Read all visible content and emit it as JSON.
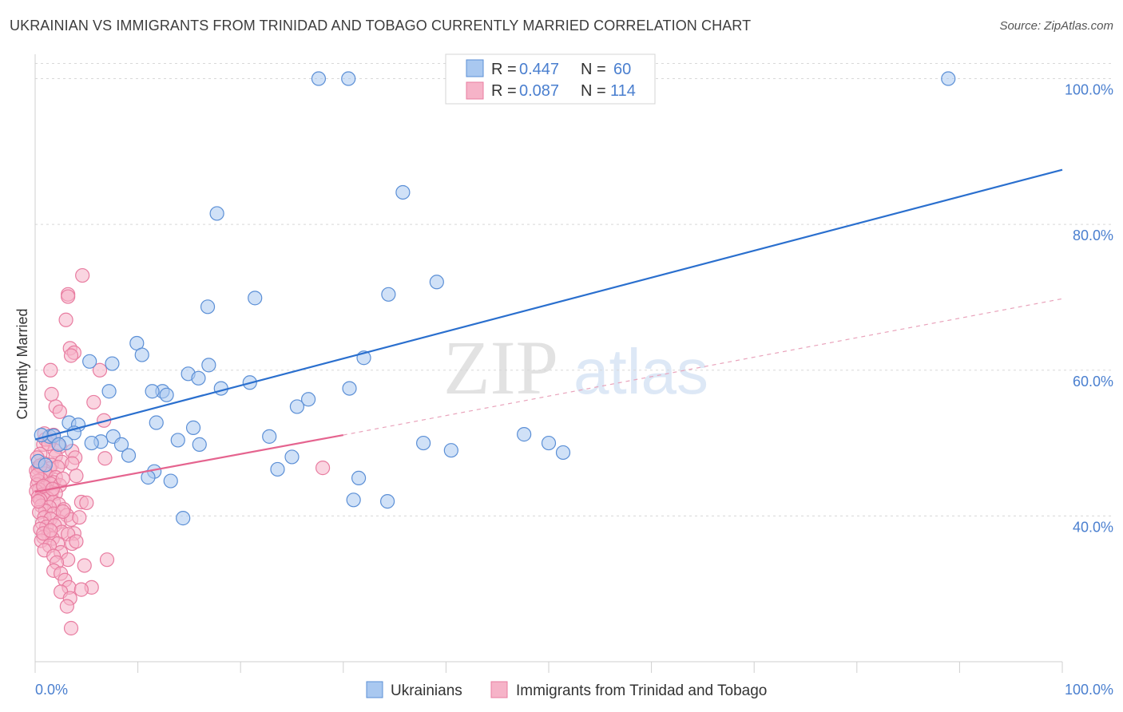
{
  "title": "UKRAINIAN VS IMMIGRANTS FROM TRINIDAD AND TOBAGO CURRENTLY MARRIED CORRELATION CHART",
  "source": "Source: ZipAtlas.com",
  "watermark": {
    "zip": "ZIP",
    "atlas": "atlas"
  },
  "colors": {
    "blue_fill": "#a9c8f0",
    "blue_stroke": "#5b8fd6",
    "blue_line": "#2a6fce",
    "pink_fill": "#f6b3c8",
    "pink_stroke": "#e87ca0",
    "pink_line": "#e5648f",
    "axis_text": "#4a7fcf",
    "grid": "#d8d8d8"
  },
  "chart_data": {
    "type": "scatter",
    "title": "UKRAINIAN VS IMMIGRANTS FROM TRINIDAD AND TOBAGO CURRENTLY MARRIED CORRELATION CHART",
    "xlabel": "",
    "ylabel": "Currently Married",
    "xlim": [
      0,
      100
    ],
    "ylim": [
      20,
      104
    ],
    "x_tick_labels": [
      "0.0%",
      "100.0%"
    ],
    "y_ticks": [
      40,
      60,
      80,
      100
    ],
    "y_tick_labels": [
      "40.0%",
      "60.0%",
      "80.0%",
      "100.0%"
    ],
    "legend": {
      "r_label": "R =",
      "n_label": "N =",
      "entries": [
        {
          "r": "0.447",
          "n": "60"
        },
        {
          "r": "0.087",
          "n": "114"
        }
      ]
    },
    "series": [
      {
        "name": "Ukrainians",
        "color": "#a9c8f0",
        "trend": {
          "x": [
            0,
            100
          ],
          "y": [
            50.5,
            87.5
          ]
        },
        "points": [
          [
            27.6,
            100
          ],
          [
            30.5,
            100
          ],
          [
            88.9,
            100
          ],
          [
            35.8,
            84.4
          ],
          [
            17.7,
            81.5
          ],
          [
            39.1,
            72.1
          ],
          [
            34.4,
            70.4
          ],
          [
            21.4,
            69.9
          ],
          [
            16.8,
            68.7
          ],
          [
            9.9,
            63.7
          ],
          [
            10.4,
            62.1
          ],
          [
            7.5,
            60.9
          ],
          [
            5.3,
            61.2
          ],
          [
            16.9,
            60.7
          ],
          [
            32.0,
            61.7
          ],
          [
            14.9,
            59.5
          ],
          [
            20.9,
            58.3
          ],
          [
            15.9,
            58.9
          ],
          [
            12.4,
            57.1
          ],
          [
            18.1,
            57.5
          ],
          [
            30.6,
            57.5
          ],
          [
            26.6,
            56.0
          ],
          [
            11.4,
            57.1
          ],
          [
            7.2,
            57.1
          ],
          [
            12.8,
            56.6
          ],
          [
            25.5,
            55.0
          ],
          [
            11.8,
            52.8
          ],
          [
            3.3,
            52.8
          ],
          [
            4.2,
            52.5
          ],
          [
            15.4,
            52.1
          ],
          [
            3.8,
            51.4
          ],
          [
            7.6,
            50.9
          ],
          [
            22.8,
            50.9
          ],
          [
            1.4,
            50.9
          ],
          [
            6.4,
            50.2
          ],
          [
            1.8,
            51.0
          ],
          [
            13.9,
            50.4
          ],
          [
            0.6,
            51.1
          ],
          [
            3.0,
            50.0
          ],
          [
            5.5,
            50.0
          ],
          [
            47.6,
            51.2
          ],
          [
            8.4,
            49.8
          ],
          [
            16.0,
            49.8
          ],
          [
            37.8,
            50.0
          ],
          [
            50.0,
            50.0
          ],
          [
            2.3,
            49.8
          ],
          [
            40.5,
            49.0
          ],
          [
            51.4,
            48.7
          ],
          [
            9.1,
            48.3
          ],
          [
            25.0,
            48.1
          ],
          [
            0.3,
            47.5
          ],
          [
            1.0,
            47.0
          ],
          [
            23.6,
            46.4
          ],
          [
            11.6,
            46.1
          ],
          [
            11.0,
            45.3
          ],
          [
            31.5,
            45.2
          ],
          [
            13.2,
            44.8
          ],
          [
            34.3,
            42.0
          ],
          [
            14.4,
            39.7
          ],
          [
            31.0,
            42.2
          ]
        ]
      },
      {
        "name": "Immigrants from Trinidad and Tobago",
        "color": "#f6b3c8",
        "trend": {
          "x": [
            0,
            30
          ],
          "y": [
            43.3,
            51.1
          ]
        },
        "trend_dashed": {
          "x": [
            30,
            100
          ],
          "y": [
            51.1,
            69.8
          ]
        },
        "points": [
          [
            4.6,
            73.0
          ],
          [
            3.2,
            70.4
          ],
          [
            3.2,
            70.1
          ],
          [
            3.0,
            66.9
          ],
          [
            3.4,
            63.0
          ],
          [
            3.8,
            62.4
          ],
          [
            3.5,
            62.0
          ],
          [
            1.5,
            60.0
          ],
          [
            6.3,
            60.0
          ],
          [
            1.6,
            56.7
          ],
          [
            5.7,
            55.6
          ],
          [
            2.0,
            55.0
          ],
          [
            2.4,
            54.3
          ],
          [
            0.9,
            51.3
          ],
          [
            6.7,
            53.1
          ],
          [
            1.8,
            51.1
          ],
          [
            1.5,
            50.4
          ],
          [
            0.8,
            49.8
          ],
          [
            2.4,
            49.5
          ],
          [
            1.9,
            49.0
          ],
          [
            3.6,
            48.9
          ],
          [
            0.5,
            48.5
          ],
          [
            2.0,
            48.2
          ],
          [
            3.9,
            48.0
          ],
          [
            0.2,
            48.0
          ],
          [
            6.8,
            47.9
          ],
          [
            0.9,
            47.2
          ],
          [
            1.6,
            47.0
          ],
          [
            2.6,
            47.4
          ],
          [
            0.4,
            46.8
          ],
          [
            1.4,
            46.5
          ],
          [
            3.6,
            47.2
          ],
          [
            0.3,
            46.5
          ],
          [
            2.2,
            46.7
          ],
          [
            0.9,
            46.2
          ],
          [
            0.1,
            46.2
          ],
          [
            1.0,
            45.8
          ],
          [
            2.0,
            45.3
          ],
          [
            4.0,
            45.5
          ],
          [
            0.6,
            45.0
          ],
          [
            1.8,
            44.6
          ],
          [
            0.3,
            44.8
          ],
          [
            1.5,
            44.4
          ],
          [
            0.2,
            44.3
          ],
          [
            2.4,
            44.2
          ],
          [
            1.0,
            43.9
          ],
          [
            0.4,
            43.6
          ],
          [
            0.1,
            43.4
          ],
          [
            1.6,
            43.2
          ],
          [
            2.0,
            43.1
          ],
          [
            0.7,
            42.9
          ],
          [
            0.3,
            42.6
          ],
          [
            1.2,
            42.4
          ],
          [
            0.5,
            42.2
          ],
          [
            1.8,
            41.9
          ],
          [
            2.3,
            41.6
          ],
          [
            0.6,
            41.4
          ],
          [
            1.4,
            41.2
          ],
          [
            4.5,
            41.9
          ],
          [
            5.0,
            41.8
          ],
          [
            2.8,
            40.9
          ],
          [
            1.0,
            40.7
          ],
          [
            0.4,
            40.5
          ],
          [
            1.8,
            40.3
          ],
          [
            3.1,
            40.1
          ],
          [
            0.9,
            39.8
          ],
          [
            1.5,
            39.6
          ],
          [
            2.4,
            39.2
          ],
          [
            3.5,
            39.5
          ],
          [
            4.3,
            39.8
          ],
          [
            0.7,
            39.0
          ],
          [
            1.1,
            38.5
          ],
          [
            1.9,
            38.7
          ],
          [
            0.5,
            38.2
          ],
          [
            2.6,
            37.8
          ],
          [
            3.8,
            37.6
          ],
          [
            1.3,
            37.4
          ],
          [
            0.8,
            37.1
          ],
          [
            3.2,
            37.5
          ],
          [
            1.7,
            36.9
          ],
          [
            0.6,
            36.6
          ],
          [
            2.2,
            36.2
          ],
          [
            3.6,
            36.2
          ],
          [
            1.4,
            35.9
          ],
          [
            0.9,
            35.3
          ],
          [
            2.5,
            35.0
          ],
          [
            1.8,
            34.5
          ],
          [
            3.2,
            34.0
          ],
          [
            2.1,
            33.6
          ],
          [
            7.0,
            34.0
          ],
          [
            4.8,
            33.2
          ],
          [
            1.8,
            32.5
          ],
          [
            2.5,
            32.1
          ],
          [
            0.8,
            37.6
          ],
          [
            2.9,
            31.2
          ],
          [
            3.3,
            30.2
          ],
          [
            5.5,
            30.2
          ],
          [
            2.5,
            29.6
          ],
          [
            4.5,
            29.9
          ],
          [
            3.4,
            28.7
          ],
          [
            3.1,
            27.6
          ],
          [
            3.5,
            24.6
          ],
          [
            28.0,
            46.6
          ],
          [
            2.7,
            45.1
          ],
          [
            1.0,
            50.5
          ],
          [
            1.3,
            49.9
          ],
          [
            0.5,
            46.9
          ],
          [
            0.2,
            45.6
          ],
          [
            0.8,
            44.1
          ],
          [
            1.7,
            43.7
          ],
          [
            0.3,
            42.0
          ],
          [
            2.7,
            40.6
          ],
          [
            1.5,
            38.0
          ],
          [
            4.0,
            36.5
          ]
        ]
      }
    ]
  }
}
